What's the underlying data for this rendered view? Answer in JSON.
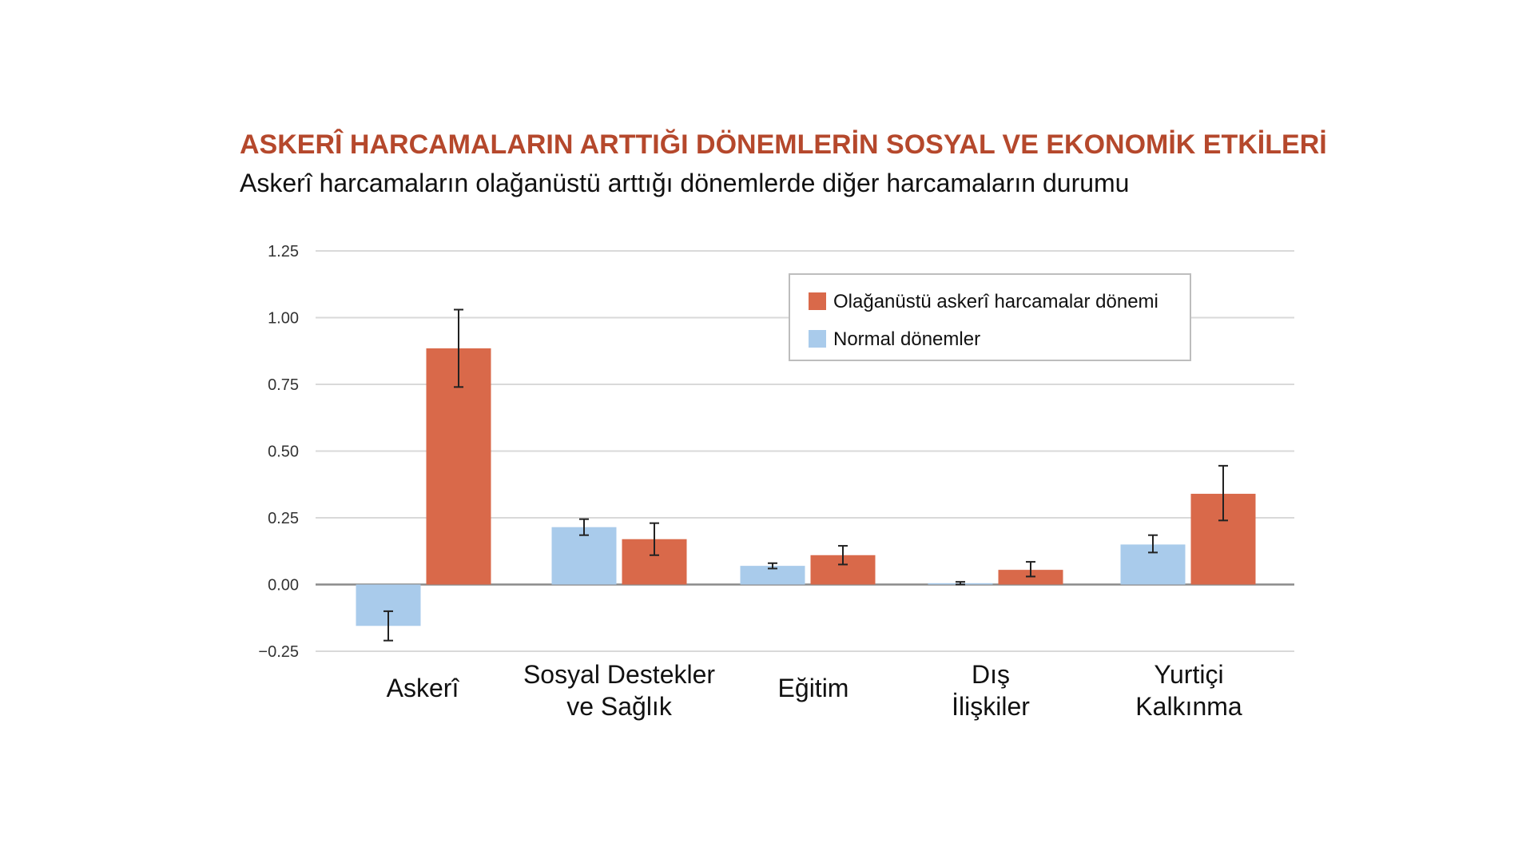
{
  "chart_data": {
    "type": "bar",
    "title": "ASKERÎ HARCAMALARIN ARTTIĞI DÖNEMLERİN SOSYAL VE EKONOMİK ETKİLERİ",
    "subtitle": "Askerî harcamaların olağanüstü arttığı dönemlerde diğer harcamaların durumu",
    "categories": [
      [
        "Askerî"
      ],
      [
        "Sosyal Destekler",
        "ve Sağlık"
      ],
      [
        "Eğitim"
      ],
      [
        "Dış",
        "İlişkiler"
      ],
      [
        "Yurtiçi",
        "Kalkınma"
      ]
    ],
    "series": [
      {
        "name": "Normal dönemler",
        "color": "#a9cbeb",
        "values": [
          -0.155,
          0.215,
          0.07,
          0.005,
          0.15
        ],
        "error_low": [
          -0.21,
          0.185,
          0.06,
          0.0,
          0.12
        ],
        "error_high": [
          -0.1,
          0.245,
          0.08,
          0.01,
          0.185
        ]
      },
      {
        "name": "Olağanüstü askerî harcamalar dönemi",
        "color": "#d9694a",
        "values": [
          0.885,
          0.17,
          0.11,
          0.055,
          0.34
        ],
        "error_low": [
          0.74,
          0.11,
          0.075,
          0.03,
          0.24
        ],
        "error_high": [
          1.03,
          0.23,
          0.145,
          0.085,
          0.445
        ]
      }
    ],
    "yticks": [
      "1.25",
      "1.00",
      "0.75",
      "0.50",
      "0.25",
      "0.00",
      "−0.25"
    ],
    "ylim": [
      -0.25,
      1.25
    ],
    "grid": true,
    "legend_position": "top-right",
    "legend_order": [
      1,
      0
    ],
    "title_color": "#b5482c"
  }
}
